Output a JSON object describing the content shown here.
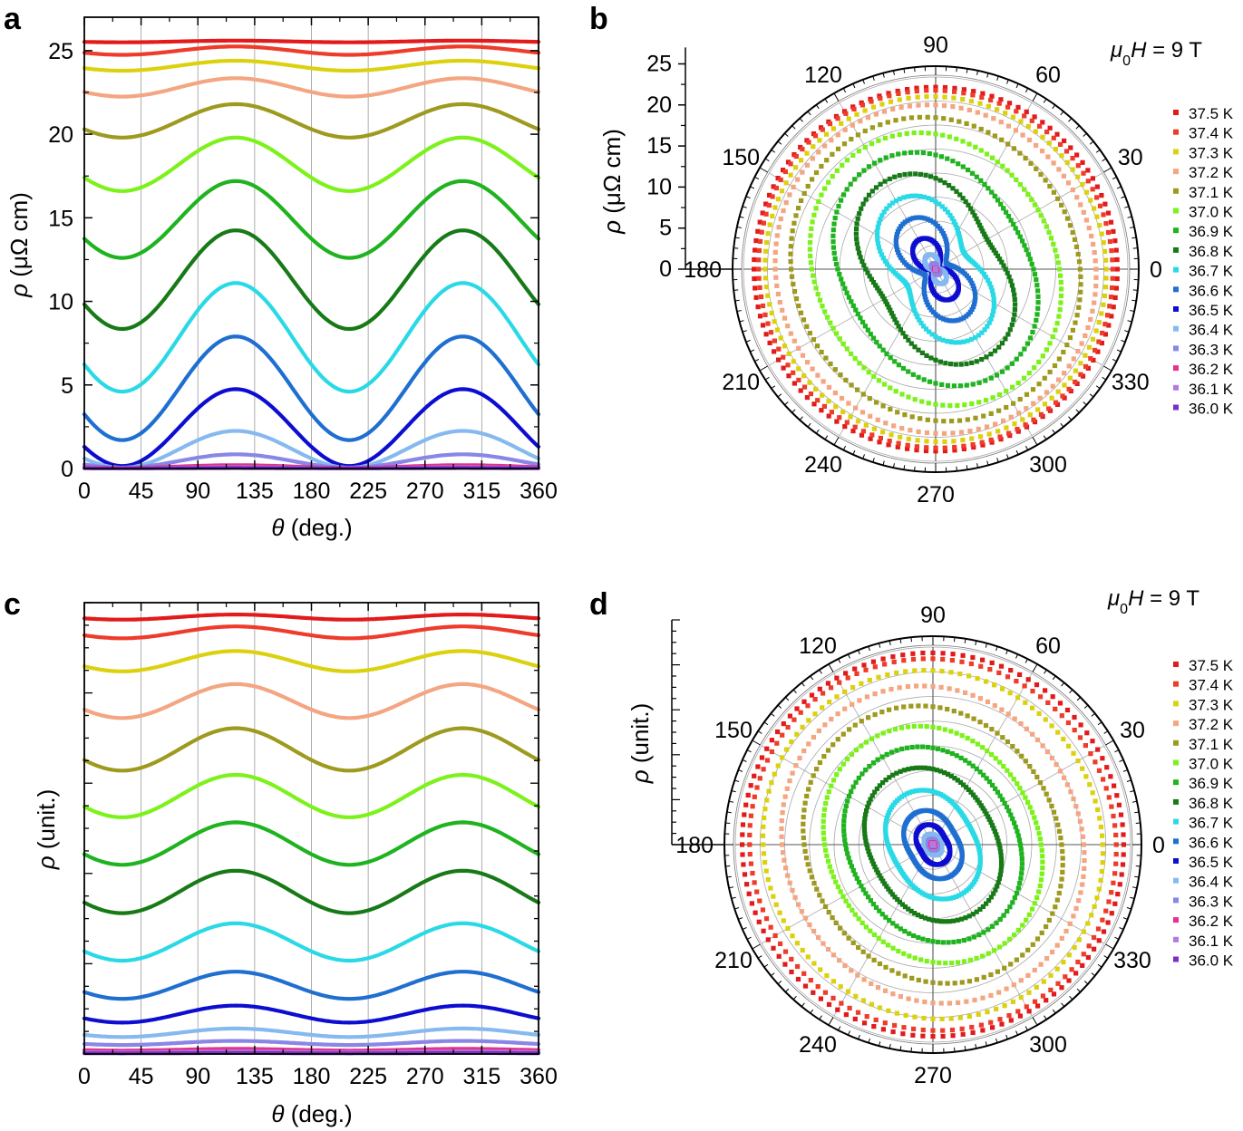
{
  "chart_data": [
    {
      "panel": "a",
      "type": "line",
      "xlabel": "θ (deg.)",
      "ylabel": "ρ (μΩ cm)",
      "xlim": [
        0,
        360
      ],
      "ylim": [
        0,
        27
      ],
      "xticks": [
        "0",
        "45",
        "90",
        "135",
        "180",
        "225",
        "270",
        "315",
        "360"
      ],
      "yticks": [
        "0",
        "5",
        "10",
        "15",
        "20",
        "25"
      ],
      "grid": "vertical",
      "series": [
        {
          "name": "37.5 K",
          "color": "#e31a1c",
          "mean": 25.55,
          "amp": 0.05,
          "phase": 120
        },
        {
          "name": "37.4 K",
          "color": "#ee3b2a",
          "mean": 25.0,
          "amp": 0.25,
          "phase": 120
        },
        {
          "name": "37.3 K",
          "color": "#dcd10e",
          "mean": 24.1,
          "amp": 0.3,
          "phase": 120
        },
        {
          "name": "37.2 K",
          "color": "#f4a582",
          "mean": 22.8,
          "amp": 0.55,
          "phase": 120
        },
        {
          "name": "37.1 K",
          "color": "#9e9a1f",
          "mean": 20.8,
          "amp": 1.0,
          "phase": 120
        },
        {
          "name": "37.0 K",
          "color": "#7cf21a",
          "mean": 18.2,
          "amp": 1.6,
          "phase": 120
        },
        {
          "name": "36.9 K",
          "color": "#1fb31f",
          "mean": 14.9,
          "amp": 2.3,
          "phase": 120
        },
        {
          "name": "36.8 K",
          "color": "#177a17",
          "mean": 11.3,
          "amp": 2.95,
          "phase": 120
        },
        {
          "name": "36.7 K",
          "color": "#29d9e6",
          "mean": 7.85,
          "amp": 3.25,
          "phase": 120
        },
        {
          "name": "36.6 K",
          "color": "#1f6fd1",
          "mean": 4.8,
          "amp": 3.1,
          "phase": 120
        },
        {
          "name": "36.5 K",
          "color": "#0d0dd1",
          "mean": 2.45,
          "amp": 2.3,
          "phase": 120
        },
        {
          "name": "36.4 K",
          "color": "#86b9ef",
          "mean": 1.15,
          "amp": 1.1,
          "phase": 120
        },
        {
          "name": "36.3 K",
          "color": "#8a86e6",
          "mean": 0.45,
          "amp": 0.4,
          "phase": 120
        },
        {
          "name": "36.2 K",
          "color": "#e5308e",
          "mean": 0.12,
          "amp": 0.08,
          "phase": 120
        },
        {
          "name": "36.1 K",
          "color": "#b27be0",
          "mean": 0.05,
          "amp": 0.03,
          "phase": 120
        },
        {
          "name": "36.0 K",
          "color": "#7b2fc4",
          "mean": 0.02,
          "amp": 0.01,
          "phase": 120
        }
      ]
    },
    {
      "panel": "b",
      "type": "polar",
      "title": "μ0H = 9 T",
      "rlabel": "ρ (μΩ cm)",
      "rlim": [
        0,
        27
      ],
      "rticks": [
        "0",
        "5",
        "10",
        "15",
        "20",
        "25"
      ],
      "angle_ticks": [
        "0",
        "30",
        "60",
        "90",
        "120",
        "150",
        "180",
        "210",
        "240",
        "270",
        "300",
        "330"
      ],
      "legend": [
        "37.5 K",
        "37.4 K",
        "37.3 K",
        "37.2 K",
        "37.1 K",
        "37.0 K",
        "36.9 K",
        "36.8 K",
        "36.7 K",
        "36.6 K",
        "36.5 K",
        "36.4 K",
        "36.3 K",
        "36.2 K",
        "36.1 K",
        "36.0 K"
      ]
    },
    {
      "panel": "c",
      "type": "line",
      "xlabel": "θ (deg.)",
      "ylabel": "ρ (unit.)",
      "xlim": [
        0,
        360
      ],
      "xticks": [
        "0",
        "45",
        "90",
        "135",
        "180",
        "225",
        "270",
        "315",
        "360"
      ],
      "normalized": true,
      "grid": "vertical",
      "series": [
        {
          "name": "37.5 K",
          "mean": 25.75,
          "amp": 0.15
        },
        {
          "name": "37.4 K",
          "mean": 24.85,
          "amp": 0.35
        },
        {
          "name": "37.3 K",
          "mean": 23.15,
          "amp": 0.6
        },
        {
          "name": "37.2 K",
          "mean": 20.8,
          "amp": 1.0
        },
        {
          "name": "37.1 K",
          "mean": 17.95,
          "amp": 1.25
        },
        {
          "name": "37.0 K",
          "mean": 15.2,
          "amp": 1.25
        },
        {
          "name": "36.9 K",
          "mean": 12.4,
          "amp": 1.25
        },
        {
          "name": "36.8 K",
          "mean": 9.55,
          "amp": 1.25
        },
        {
          "name": "36.7 K",
          "mean": 6.6,
          "amp": 1.1
        },
        {
          "name": "36.6 K",
          "mean": 4.05,
          "amp": 0.8
        },
        {
          "name": "36.5 K",
          "mean": 2.35,
          "amp": 0.5
        },
        {
          "name": "36.4 K",
          "mean": 1.25,
          "amp": 0.25
        },
        {
          "name": "36.3 K",
          "mean": 0.65,
          "amp": 0.12
        },
        {
          "name": "36.2 K",
          "mean": 0.25,
          "amp": 0.05
        },
        {
          "name": "36.1 K",
          "mean": 0.12,
          "amp": 0.03
        },
        {
          "name": "36.0 K",
          "mean": 0.05,
          "amp": 0.01
        }
      ]
    },
    {
      "panel": "d",
      "type": "polar",
      "title": "μ0H = 9 T",
      "rlabel": "ρ (unit.)",
      "normalized": true,
      "angle_ticks": [
        "0",
        "30",
        "60",
        "90",
        "120",
        "150",
        "180",
        "210",
        "240",
        "270",
        "300",
        "330"
      ],
      "legend": [
        "37.5 K",
        "37.4 K",
        "37.3 K",
        "37.2 K",
        "37.1 K",
        "37.0 K",
        "36.9 K",
        "36.8 K",
        "36.7 K",
        "36.6 K",
        "36.5 K",
        "36.4 K",
        "36.3 K",
        "36.2 K",
        "36.1 K",
        "36.0 K"
      ]
    }
  ],
  "labels": {
    "panel_a": "a",
    "panel_b": "b",
    "panel_c": "c",
    "panel_d": "d",
    "field_prefix": "μ",
    "field_sub": "0",
    "field_var": "H",
    "field_value": " = 9 T",
    "theta_symbol": "θ",
    "theta_unit": " (deg.)",
    "rho_symbol": "ρ",
    "rho_unit_ohm": " (μΩ cm)",
    "rho_unit_norm": " (unit.)"
  }
}
